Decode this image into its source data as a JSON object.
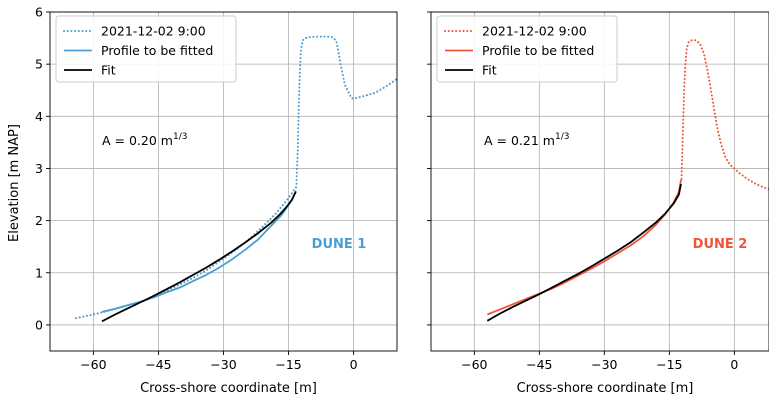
{
  "figure": {
    "ylabel": "Elevation [m NAP]",
    "xlabel": "Cross-shore coordinate [m]"
  },
  "chart_data": [
    {
      "type": "line",
      "xlabel": "Cross-shore coordinate [m]",
      "ylabel": "Elevation [m NAP]",
      "xlim": [
        -70,
        10
      ],
      "ylim": [
        -0.5,
        6
      ],
      "xticks": [
        -60,
        -45,
        -30,
        -15,
        0
      ],
      "xticklabels": [
        "−60",
        "−45",
        "−30",
        "−15",
        "0"
      ],
      "yticks": [
        0,
        1,
        2,
        3,
        4,
        5,
        6
      ],
      "grid": true,
      "legend_position": "top-left",
      "annotation": {
        "prefix": "A = 0.20 m",
        "superscript": "1/3"
      },
      "label": "DUNE 1",
      "color": "#4a9fd0",
      "series": [
        {
          "name": "2021-12-02 9:00",
          "style": "dotted",
          "color": "#4a9fd0",
          "x": [
            -64,
            -60,
            -56,
            -52,
            -48,
            -45,
            -42,
            -39,
            -36,
            -33,
            -30,
            -27,
            -24,
            -21,
            -18,
            -15.5,
            -14,
            -13.2,
            -13.1,
            -12.9,
            -12.7,
            -12.5,
            -12.2,
            -11.8,
            -11.2,
            -10,
            -7,
            -5,
            -4,
            -3,
            -2,
            -0.5,
            0,
            2,
            5,
            8,
            10
          ],
          "y": [
            0.13,
            0.2,
            0.28,
            0.38,
            0.47,
            0.58,
            0.7,
            0.82,
            0.95,
            1.1,
            1.27,
            1.45,
            1.65,
            1.88,
            2.13,
            2.38,
            2.55,
            2.65,
            2.9,
            3.3,
            4.0,
            4.6,
            5.2,
            5.45,
            5.5,
            5.52,
            5.53,
            5.52,
            5.45,
            5.0,
            4.6,
            4.35,
            4.34,
            4.38,
            4.45,
            4.6,
            4.72
          ]
        },
        {
          "name": "Profile to be fitted",
          "style": "solid",
          "color": "#4a9fd0",
          "x": [
            -58,
            -55,
            -52,
            -49,
            -46,
            -43,
            -40,
            -37,
            -34,
            -31,
            -28,
            -25,
            -22,
            -19,
            -16.5,
            -14.5,
            -13.3
          ],
          "y": [
            0.25,
            0.31,
            0.38,
            0.45,
            0.53,
            0.63,
            0.72,
            0.84,
            0.96,
            1.1,
            1.26,
            1.44,
            1.64,
            1.9,
            2.12,
            2.36,
            2.56
          ]
        },
        {
          "name": "Fit",
          "style": "solid",
          "color": "#000000",
          "x": [
            -58,
            -55,
            -52,
            -49,
            -46,
            -43,
            -40,
            -37,
            -34,
            -31,
            -28,
            -25,
            -22,
            -19,
            -17,
            -15.5,
            -14.2,
            -13.3
          ],
          "y": [
            0.07,
            0.2,
            0.32,
            0.44,
            0.56,
            0.69,
            0.82,
            0.96,
            1.1,
            1.25,
            1.41,
            1.58,
            1.76,
            1.96,
            2.12,
            2.26,
            2.4,
            2.56
          ]
        }
      ]
    },
    {
      "type": "line",
      "xlabel": "Cross-shore coordinate [m]",
      "ylabel": "",
      "xlim": [
        -70,
        8
      ],
      "ylim": [
        -0.5,
        6
      ],
      "xticks": [
        -60,
        -45,
        -30,
        -15,
        0
      ],
      "xticklabels": [
        "−60",
        "−45",
        "−30",
        "−15",
        "0"
      ],
      "yticks": [
        0,
        1,
        2,
        3,
        4,
        5,
        6
      ],
      "grid": true,
      "legend_position": "top-left",
      "annotation": {
        "prefix": "A = 0.21 m",
        "superscript": "1/3"
      },
      "label": "DUNE 2",
      "color": "#f0553a",
      "series": [
        {
          "name": "2021-12-02 9:00",
          "style": "dotted",
          "color": "#f0553a",
          "x": [
            -12.2,
            -12.0,
            -11.8,
            -11.6,
            -11.3,
            -11.0,
            -10.5,
            -9.8,
            -9,
            -8,
            -7,
            -6,
            -5,
            -4,
            -3,
            -2,
            -1,
            0,
            1,
            3,
            5,
            7,
            8
          ],
          "y": [
            2.8,
            3.3,
            3.9,
            4.5,
            5.0,
            5.3,
            5.43,
            5.46,
            5.46,
            5.4,
            5.2,
            4.8,
            4.3,
            3.8,
            3.45,
            3.2,
            3.07,
            3.0,
            2.92,
            2.8,
            2.7,
            2.63,
            2.61
          ]
        },
        {
          "name": "Profile to be fitted",
          "style": "solid",
          "color": "#f0553a",
          "x": [
            -57,
            -54,
            -51,
            -48,
            -45,
            -42,
            -39,
            -36,
            -33,
            -30,
            -27,
            -24,
            -21,
            -18,
            -16,
            -14,
            -12.8,
            -12.3
          ],
          "y": [
            0.2,
            0.3,
            0.4,
            0.5,
            0.6,
            0.7,
            0.82,
            0.95,
            1.08,
            1.22,
            1.37,
            1.52,
            1.7,
            1.93,
            2.12,
            2.35,
            2.55,
            2.78
          ]
        },
        {
          "name": "Fit",
          "style": "solid",
          "color": "#000000",
          "x": [
            -57,
            -54,
            -51,
            -48,
            -45,
            -42,
            -39,
            -36,
            -33,
            -30,
            -27,
            -24,
            -21,
            -18,
            -16,
            -14,
            -12.8,
            -12.3
          ],
          "y": [
            0.08,
            0.22,
            0.35,
            0.47,
            0.59,
            0.72,
            0.85,
            0.98,
            1.12,
            1.27,
            1.42,
            1.58,
            1.77,
            1.97,
            2.13,
            2.33,
            2.5,
            2.7
          ]
        }
      ]
    }
  ]
}
